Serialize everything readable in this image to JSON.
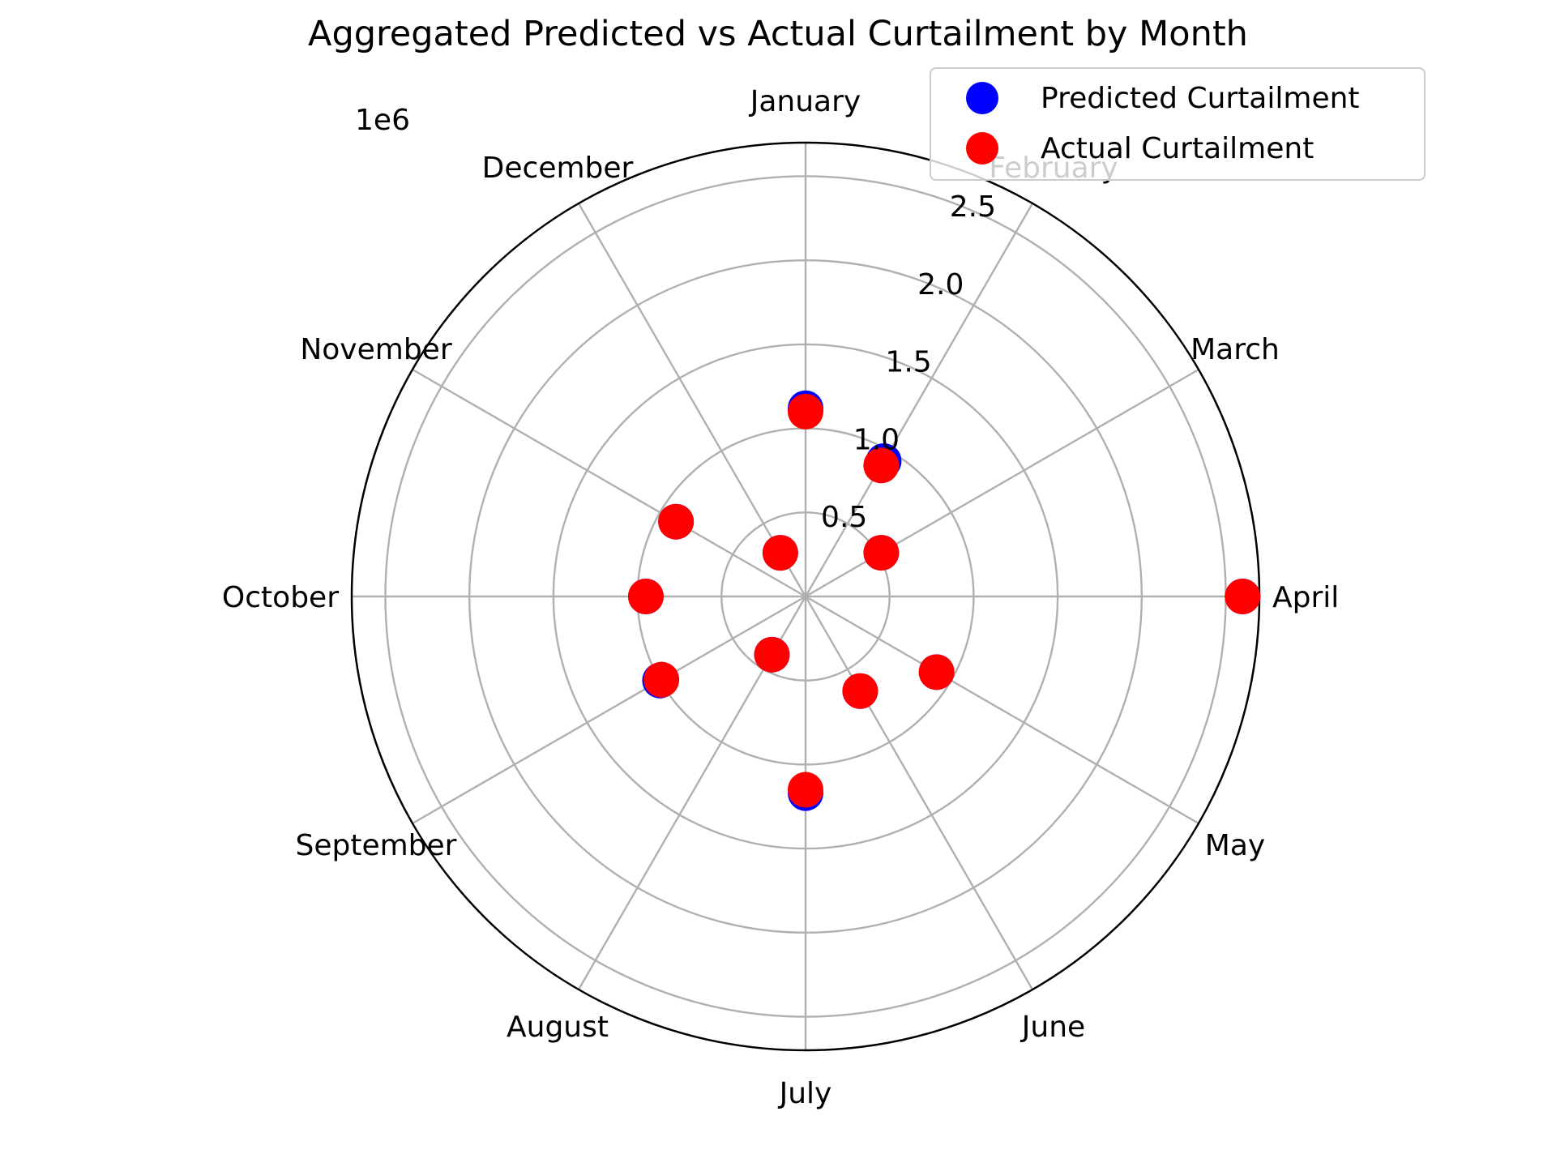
{
  "chart_data": {
    "type": "scatter",
    "projection": "polar",
    "title": "Aggregated Predicted vs Actual Curtailment by Month",
    "theta_categories": [
      "January",
      "February",
      "March",
      "April",
      "May",
      "June",
      "July",
      "August",
      "September",
      "October",
      "November",
      "December"
    ],
    "radial_ticks": [
      0.5,
      1.0,
      1.5,
      2.0,
      2.5
    ],
    "radial_tick_labels": [
      "0.5",
      "1.0",
      "1.5",
      "2.0",
      "2.5"
    ],
    "radial_offset_label": "1e6",
    "rlim": [
      0,
      2.7
    ],
    "r_unit_multiplier": 1000000,
    "grid": true,
    "legend_position": "top-right",
    "series": [
      {
        "name": "Predicted Curtailment",
        "color": "#0000ff",
        "values": [
          1.12,
          0.93,
          0.52,
          2.6,
          0.9,
          0.65,
          1.17,
          0.4,
          1.0,
          0.95,
          0.89,
          0.3
        ]
      },
      {
        "name": "Actual Curtailment",
        "color": "#ff0000",
        "values": [
          1.1,
          0.9,
          0.52,
          2.6,
          0.9,
          0.65,
          1.15,
          0.4,
          0.99,
          0.95,
          0.89,
          0.3
        ]
      }
    ]
  }
}
